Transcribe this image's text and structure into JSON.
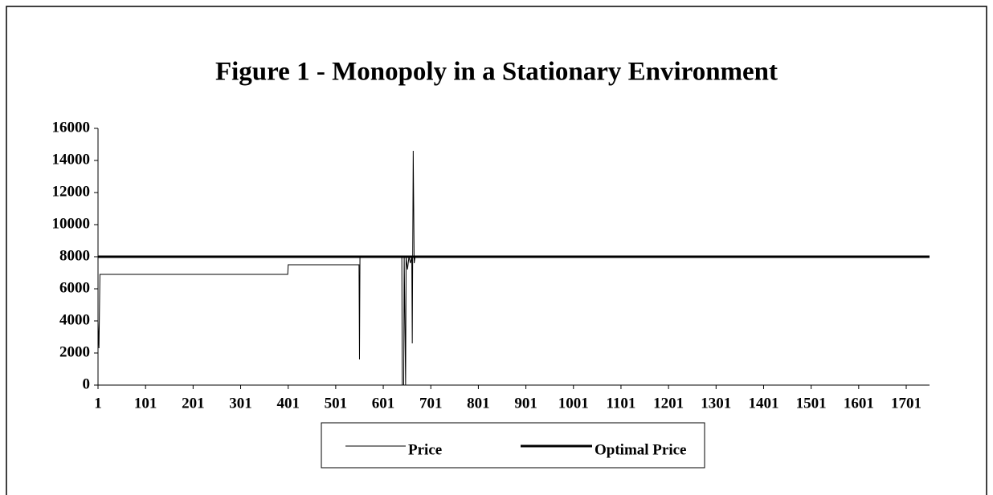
{
  "chart_data": {
    "type": "line",
    "title": "Figure 1 - Monopoly in a Stationary Environment",
    "xlim": [
      1,
      1750
    ],
    "xticks": [
      1,
      101,
      201,
      301,
      401,
      501,
      601,
      701,
      801,
      901,
      1001,
      1101,
      1201,
      1301,
      1401,
      1501,
      1601,
      1701
    ],
    "ylim": [
      0,
      16000
    ],
    "yticks": [
      0,
      2000,
      4000,
      6000,
      8000,
      10000,
      12000,
      14000,
      16000
    ],
    "legend": "bottom",
    "series": [
      {
        "name": "Price",
        "color": "#000000",
        "width": 1,
        "x": [
          1,
          3,
          5,
          400,
          401,
          550,
          551,
          552,
          640,
          641,
          644,
          645,
          648,
          649,
          652,
          655,
          658,
          661,
          662,
          664,
          666,
          668,
          1750
        ],
        "values": [
          4000,
          2300,
          6900,
          6900,
          7500,
          7500,
          1600,
          8000,
          8000,
          0,
          0,
          8000,
          0,
          8000,
          7200,
          8000,
          7600,
          8000,
          2600,
          14600,
          7600,
          8000,
          8000
        ]
      },
      {
        "name": "Optimal Price",
        "color": "#000000",
        "width": 3,
        "x": [
          1,
          1750
        ],
        "values": [
          8000,
          8000
        ]
      }
    ]
  }
}
